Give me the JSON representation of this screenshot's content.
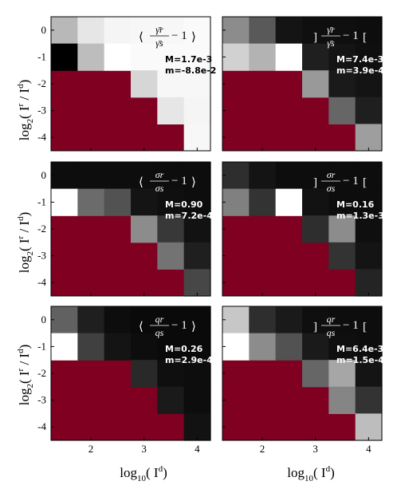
{
  "figure": {
    "ylabel_main": "log",
    "ylabel_sub": "2",
    "ylabel_rest": "( I",
    "ylabel_sup1": "r",
    "ylabel_slash": " / I",
    "ylabel_sup2": "d",
    "ylabel_close": ")",
    "xlabel_main": "log",
    "xlabel_sub": "10",
    "xlabel_rest": "( I",
    "xlabel_sup": "d",
    "xlabel_close": ")",
    "masked_color": "#7f0020"
  },
  "chart_data": [
    {
      "type": "heatmap",
      "id": "p1",
      "formula": {
        "style": "angle",
        "num": "γ̄r",
        "den": "γ̄s",
        "minus": "− 1"
      },
      "M": "M=1.7e-3",
      "m": "m=-8.8e-2",
      "label_dark": true,
      "x_range": [
        1.25,
        4.25
      ],
      "y_range": [
        -4.5,
        0.5
      ],
      "x_ticks": [
        "2",
        "3",
        "4"
      ],
      "y_ticks": [
        "0",
        "-1",
        "-2",
        "-3",
        "-4"
      ],
      "show_yticks": true,
      "show_xticks": false,
      "intensity": [
        [
          0.72,
          0.9,
          0.96,
          0.97,
          0.97,
          0.98
        ],
        [
          0.0,
          0.74,
          1.0,
          0.98,
          0.98,
          0.98
        ],
        [
          null,
          null,
          null,
          0.84,
          0.97,
          0.97
        ],
        [
          null,
          null,
          null,
          null,
          0.9,
          0.96
        ],
        [
          null,
          null,
          null,
          null,
          null,
          0.97
        ]
      ]
    },
    {
      "type": "heatmap",
      "id": "p2",
      "formula": {
        "style": "bracket",
        "num": "γ̄r",
        "den": "γ̄s",
        "minus": "− 1"
      },
      "M": "M=7.4e-3",
      "m": "m=3.9e-4",
      "label_dark": false,
      "x_range": [
        1.25,
        4.25
      ],
      "y_range": [
        -4.5,
        0.5
      ],
      "x_ticks": [
        "2",
        "3",
        "4"
      ],
      "y_ticks": [
        "0",
        "-1",
        "-2",
        "-3",
        "-4"
      ],
      "show_yticks": false,
      "show_xticks": false,
      "intensity": [
        [
          0.55,
          0.35,
          0.08,
          0.06,
          0.06,
          0.05
        ],
        [
          0.82,
          0.7,
          1.0,
          0.12,
          0.08,
          0.06
        ],
        [
          null,
          null,
          null,
          0.6,
          0.1,
          0.08
        ],
        [
          null,
          null,
          null,
          null,
          0.4,
          0.12
        ],
        [
          null,
          null,
          null,
          null,
          null,
          0.62
        ]
      ]
    },
    {
      "type": "heatmap",
      "id": "p3",
      "formula": {
        "style": "angle",
        "num": "σr",
        "den": "σs",
        "minus": "− 1"
      },
      "M": "M=0.90",
      "m": "m=7.2e-4",
      "label_dark": false,
      "x_range": [
        1.25,
        4.25
      ],
      "y_range": [
        -4.5,
        0.5
      ],
      "x_ticks": [
        "2",
        "3",
        "4"
      ],
      "y_ticks": [
        "0",
        "-1",
        "-2",
        "-3",
        "-4"
      ],
      "show_yticks": true,
      "show_xticks": false,
      "intensity": [
        [
          0.05,
          0.05,
          0.05,
          0.05,
          0.05,
          0.05
        ],
        [
          1.0,
          0.42,
          0.32,
          0.08,
          0.06,
          0.05
        ],
        [
          null,
          null,
          null,
          0.55,
          0.22,
          0.07
        ],
        [
          null,
          null,
          null,
          null,
          0.45,
          0.12
        ],
        [
          null,
          null,
          null,
          null,
          null,
          0.28
        ]
      ]
    },
    {
      "type": "heatmap",
      "id": "p4",
      "formula": {
        "style": "bracket",
        "num": "σr",
        "den": "σs",
        "minus": "− 1"
      },
      "M": "M=0.16",
      "m": "m=1.3e-3",
      "label_dark": false,
      "x_range": [
        1.25,
        4.25
      ],
      "y_range": [
        -4.5,
        0.5
      ],
      "x_ticks": [
        "2",
        "3",
        "4"
      ],
      "y_ticks": [
        "0",
        "-1",
        "-2",
        "-3",
        "-4"
      ],
      "show_yticks": false,
      "show_xticks": false,
      "intensity": [
        [
          0.18,
          0.08,
          0.05,
          0.05,
          0.05,
          0.05
        ],
        [
          0.5,
          0.2,
          1.0,
          0.07,
          0.05,
          0.05
        ],
        [
          null,
          null,
          null,
          0.18,
          0.55,
          0.06
        ],
        [
          null,
          null,
          null,
          null,
          0.2,
          0.08
        ],
        [
          null,
          null,
          null,
          null,
          null,
          0.14
        ]
      ]
    },
    {
      "type": "heatmap",
      "id": "p5",
      "formula": {
        "style": "angle",
        "num": "qr",
        "den": "qs",
        "minus": "− 1"
      },
      "M": "M=0.26",
      "m": "m=2.9e-4",
      "label_dark": false,
      "x_range": [
        1.25,
        4.25
      ],
      "y_range": [
        -4.5,
        0.5
      ],
      "x_ticks": [
        "2",
        "3",
        "4"
      ],
      "y_ticks": [
        "0",
        "-1",
        "-2",
        "-3",
        "-4"
      ],
      "show_yticks": true,
      "show_xticks": true,
      "intensity": [
        [
          0.38,
          0.12,
          0.05,
          0.04,
          0.04,
          0.04
        ],
        [
          1.0,
          0.25,
          0.08,
          0.05,
          0.04,
          0.04
        ],
        [
          null,
          null,
          null,
          0.16,
          0.06,
          0.05
        ],
        [
          null,
          null,
          null,
          null,
          0.1,
          0.05
        ],
        [
          null,
          null,
          null,
          null,
          null,
          0.07
        ]
      ]
    },
    {
      "type": "heatmap",
      "id": "p6",
      "formula": {
        "style": "bracket",
        "num": "qr",
        "den": "qs",
        "minus": "− 1"
      },
      "M": "M=6.4e-3",
      "m": "m=1.5e-4",
      "label_dark": false,
      "x_range": [
        1.25,
        4.25
      ],
      "y_range": [
        -4.5,
        0.5
      ],
      "x_ticks": [
        "2",
        "3",
        "4"
      ],
      "y_ticks": [
        "0",
        "-1",
        "-2",
        "-3",
        "-4"
      ],
      "show_yticks": false,
      "show_xticks": true,
      "intensity": [
        [
          0.78,
          0.18,
          0.1,
          0.06,
          0.05,
          0.05
        ],
        [
          1.0,
          0.55,
          0.32,
          0.1,
          0.06,
          0.05
        ],
        [
          null,
          null,
          null,
          0.4,
          0.65,
          0.08
        ],
        [
          null,
          null,
          null,
          null,
          0.52,
          0.2
        ],
        [
          null,
          null,
          null,
          null,
          null,
          0.74
        ]
      ]
    }
  ]
}
